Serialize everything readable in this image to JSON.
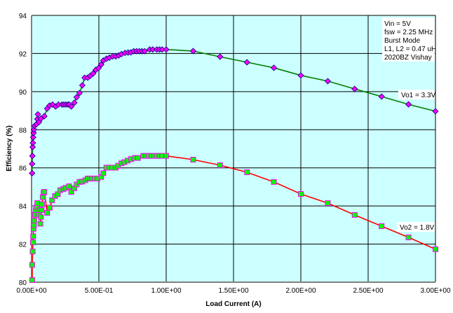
{
  "chart_data": {
    "type": "scatter",
    "title": "",
    "xlabel": "Load Current (A)",
    "ylabel": "Efficiency (%)",
    "xlim": [
      0,
      3.0
    ],
    "ylim": [
      80,
      94
    ],
    "x_ticks": [
      0,
      0.5,
      1.0,
      1.5,
      2.0,
      2.5,
      3.0
    ],
    "x_tick_labels": [
      "0.00E+00",
      "5.00E-01",
      "1.00E+00",
      "1.50E+00",
      "2.00E+00",
      "2.50E+00",
      "3.00E+00"
    ],
    "y_ticks": [
      80,
      82,
      84,
      86,
      88,
      90,
      92,
      94
    ],
    "y_tick_labels": [
      "80",
      "82",
      "84",
      "86",
      "88",
      "90",
      "92",
      "94"
    ],
    "grid": true,
    "plot_background": "#ccffff",
    "annotation": [
      "Vin = 5V",
      "fsw = 2.25 MHz",
      "Burst Mode",
      "L1, L2 = 0.47 uH",
      "2020BZ Vishay"
    ],
    "series": [
      {
        "name": "Vo1 = 3.3V",
        "line_color": "#008000",
        "marker": "diamond",
        "marker_fill": "#ff00ff",
        "marker_edge": "#000080",
        "x": [
          0.004,
          0.004,
          0.006,
          0.008,
          0.01,
          0.012,
          0.015,
          0.018,
          0.022,
          0.036,
          0.043,
          0.047,
          0.055,
          0.069,
          0.095,
          0.116,
          0.134,
          0.156,
          0.179,
          0.2,
          0.226,
          0.24,
          0.255,
          0.27,
          0.28,
          0.295,
          0.318,
          0.335,
          0.356,
          0.377,
          0.394,
          0.417,
          0.436,
          0.457,
          0.477,
          0.498,
          0.517,
          0.533,
          0.556,
          0.578,
          0.602,
          0.625,
          0.648,
          0.668,
          0.694,
          0.717,
          0.738,
          0.759,
          0.78,
          0.8,
          0.82,
          0.84,
          0.877,
          0.9,
          0.93,
          0.95,
          0.97,
          1.0,
          1.2,
          1.4,
          1.6,
          1.8,
          2.0,
          2.2,
          2.4,
          2.6,
          2.8,
          3.0
        ],
        "y": [
          85.72,
          86.21,
          86.63,
          87.09,
          87.31,
          87.6,
          87.83,
          88.01,
          88.2,
          88.29,
          88.56,
          88.81,
          88.4,
          88.58,
          88.71,
          89.11,
          89.27,
          89.32,
          89.22,
          89.32,
          89.32,
          89.32,
          89.32,
          89.32,
          89.32,
          89.22,
          89.42,
          89.71,
          89.93,
          90.33,
          90.73,
          90.73,
          90.83,
          90.95,
          91.14,
          91.24,
          91.42,
          91.63,
          91.73,
          91.78,
          91.85,
          91.85,
          91.9,
          91.97,
          92.03,
          92.05,
          92.06,
          92.12,
          92.12,
          92.12,
          92.12,
          92.12,
          92.21,
          92.21,
          92.21,
          92.21,
          92.21,
          92.21,
          92.13,
          91.83,
          91.54,
          91.25,
          90.85,
          90.55,
          90.14,
          89.74,
          89.33,
          88.97
        ]
      },
      {
        "name": "Vo2 = 1.8V",
        "line_color": "#ff0000",
        "marker": "square",
        "marker_fill": "#00ff00",
        "marker_edge": "#ff00ff",
        "x": [
          0.005,
          0.005,
          0.008,
          0.01,
          0.012,
          0.015,
          0.018,
          0.02,
          0.026,
          0.03,
          0.04,
          0.043,
          0.052,
          0.061,
          0.066,
          0.069,
          0.075,
          0.078,
          0.083,
          0.09,
          0.095,
          0.116,
          0.135,
          0.153,
          0.174,
          0.195,
          0.214,
          0.237,
          0.253,
          0.278,
          0.295,
          0.318,
          0.335,
          0.356,
          0.377,
          0.4,
          0.417,
          0.435,
          0.45,
          0.47,
          0.49,
          0.517,
          0.533,
          0.556,
          0.578,
          0.6,
          0.625,
          0.643,
          0.668,
          0.69,
          0.714,
          0.74,
          0.768,
          0.79,
          0.83,
          0.85,
          0.87,
          0.89,
          0.91,
          0.93,
          0.95,
          0.97,
          1.0,
          1.2,
          1.4,
          1.6,
          1.8,
          2.0,
          2.2,
          2.4,
          2.6,
          2.8,
          3.0
        ],
        "y": [
          80.11,
          80.91,
          81.61,
          82.09,
          82.41,
          82.8,
          82.99,
          83.23,
          83.54,
          83.78,
          83.97,
          84.15,
          83.54,
          83.78,
          83.07,
          83.42,
          83.78,
          84.09,
          84.46,
          84.7,
          84.74,
          83.64,
          83.91,
          84.3,
          84.52,
          84.62,
          84.83,
          84.89,
          84.95,
          85.03,
          84.74,
          84.93,
          85.13,
          85.26,
          85.28,
          85.35,
          85.44,
          85.44,
          85.44,
          85.44,
          85.44,
          85.52,
          85.72,
          86.01,
          86.01,
          86.01,
          86.01,
          86.11,
          86.24,
          86.3,
          86.38,
          86.46,
          86.52,
          86.52,
          86.63,
          86.63,
          86.63,
          86.63,
          86.63,
          86.63,
          86.63,
          86.63,
          86.63,
          86.43,
          86.14,
          85.77,
          85.26,
          84.63,
          84.15,
          83.53,
          82.94,
          82.35,
          81.73
        ]
      }
    ]
  }
}
